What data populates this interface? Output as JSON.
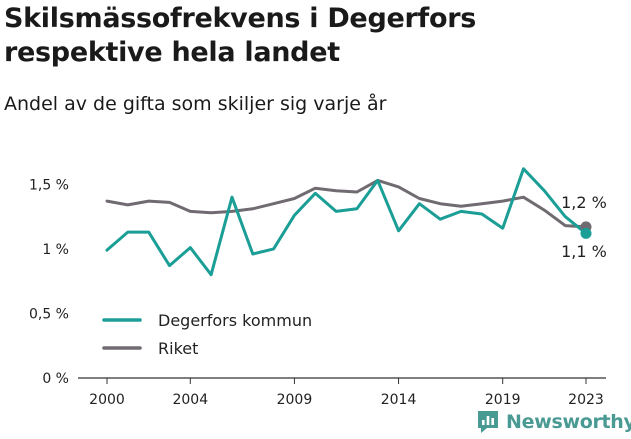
{
  "title": "Skilsmässofrekvens i Degerfors respektive hela landet",
  "subtitle": "Andel av de gifta som skiljer sig varje år",
  "brand": "Newsworthy",
  "colors": {
    "degerfors": "#1a9e96",
    "riket": "#6f6b70",
    "axis": "#333333",
    "brand": "#4a9a94"
  },
  "chart_data": {
    "type": "line",
    "x": [
      2000,
      2001,
      2002,
      2003,
      2004,
      2005,
      2006,
      2007,
      2008,
      2009,
      2010,
      2011,
      2012,
      2013,
      2014,
      2015,
      2016,
      2017,
      2018,
      2019,
      2020,
      2021,
      2022,
      2023
    ],
    "xticks": [
      2000,
      2004,
      2009,
      2014,
      2019,
      2023
    ],
    "ylim": [
      0,
      1.75
    ],
    "yticks": [
      0,
      0.5,
      1,
      1.5
    ],
    "ytick_labels": [
      "0 %",
      "0,5 %",
      "1 %",
      "1,5 %"
    ],
    "grid": false,
    "legend_position": "bottom-left",
    "series": [
      {
        "name": "Degerfors kommun",
        "color": "#1a9e96",
        "values": [
          0.99,
          1.13,
          1.13,
          0.87,
          1.01,
          0.8,
          1.4,
          0.96,
          1.0,
          1.26,
          1.43,
          1.29,
          1.31,
          1.53,
          1.14,
          1.35,
          1.23,
          1.29,
          1.27,
          1.16,
          1.62,
          1.45,
          1.25,
          1.12
        ],
        "end_label": "1,1 %"
      },
      {
        "name": "Riket",
        "color": "#6f6b70",
        "values": [
          1.37,
          1.34,
          1.37,
          1.36,
          1.29,
          1.28,
          1.29,
          1.31,
          1.35,
          1.39,
          1.47,
          1.45,
          1.44,
          1.53,
          1.48,
          1.39,
          1.35,
          1.33,
          1.35,
          1.37,
          1.4,
          1.3,
          1.18,
          1.17
        ],
        "end_label": "1,2 %"
      }
    ]
  }
}
